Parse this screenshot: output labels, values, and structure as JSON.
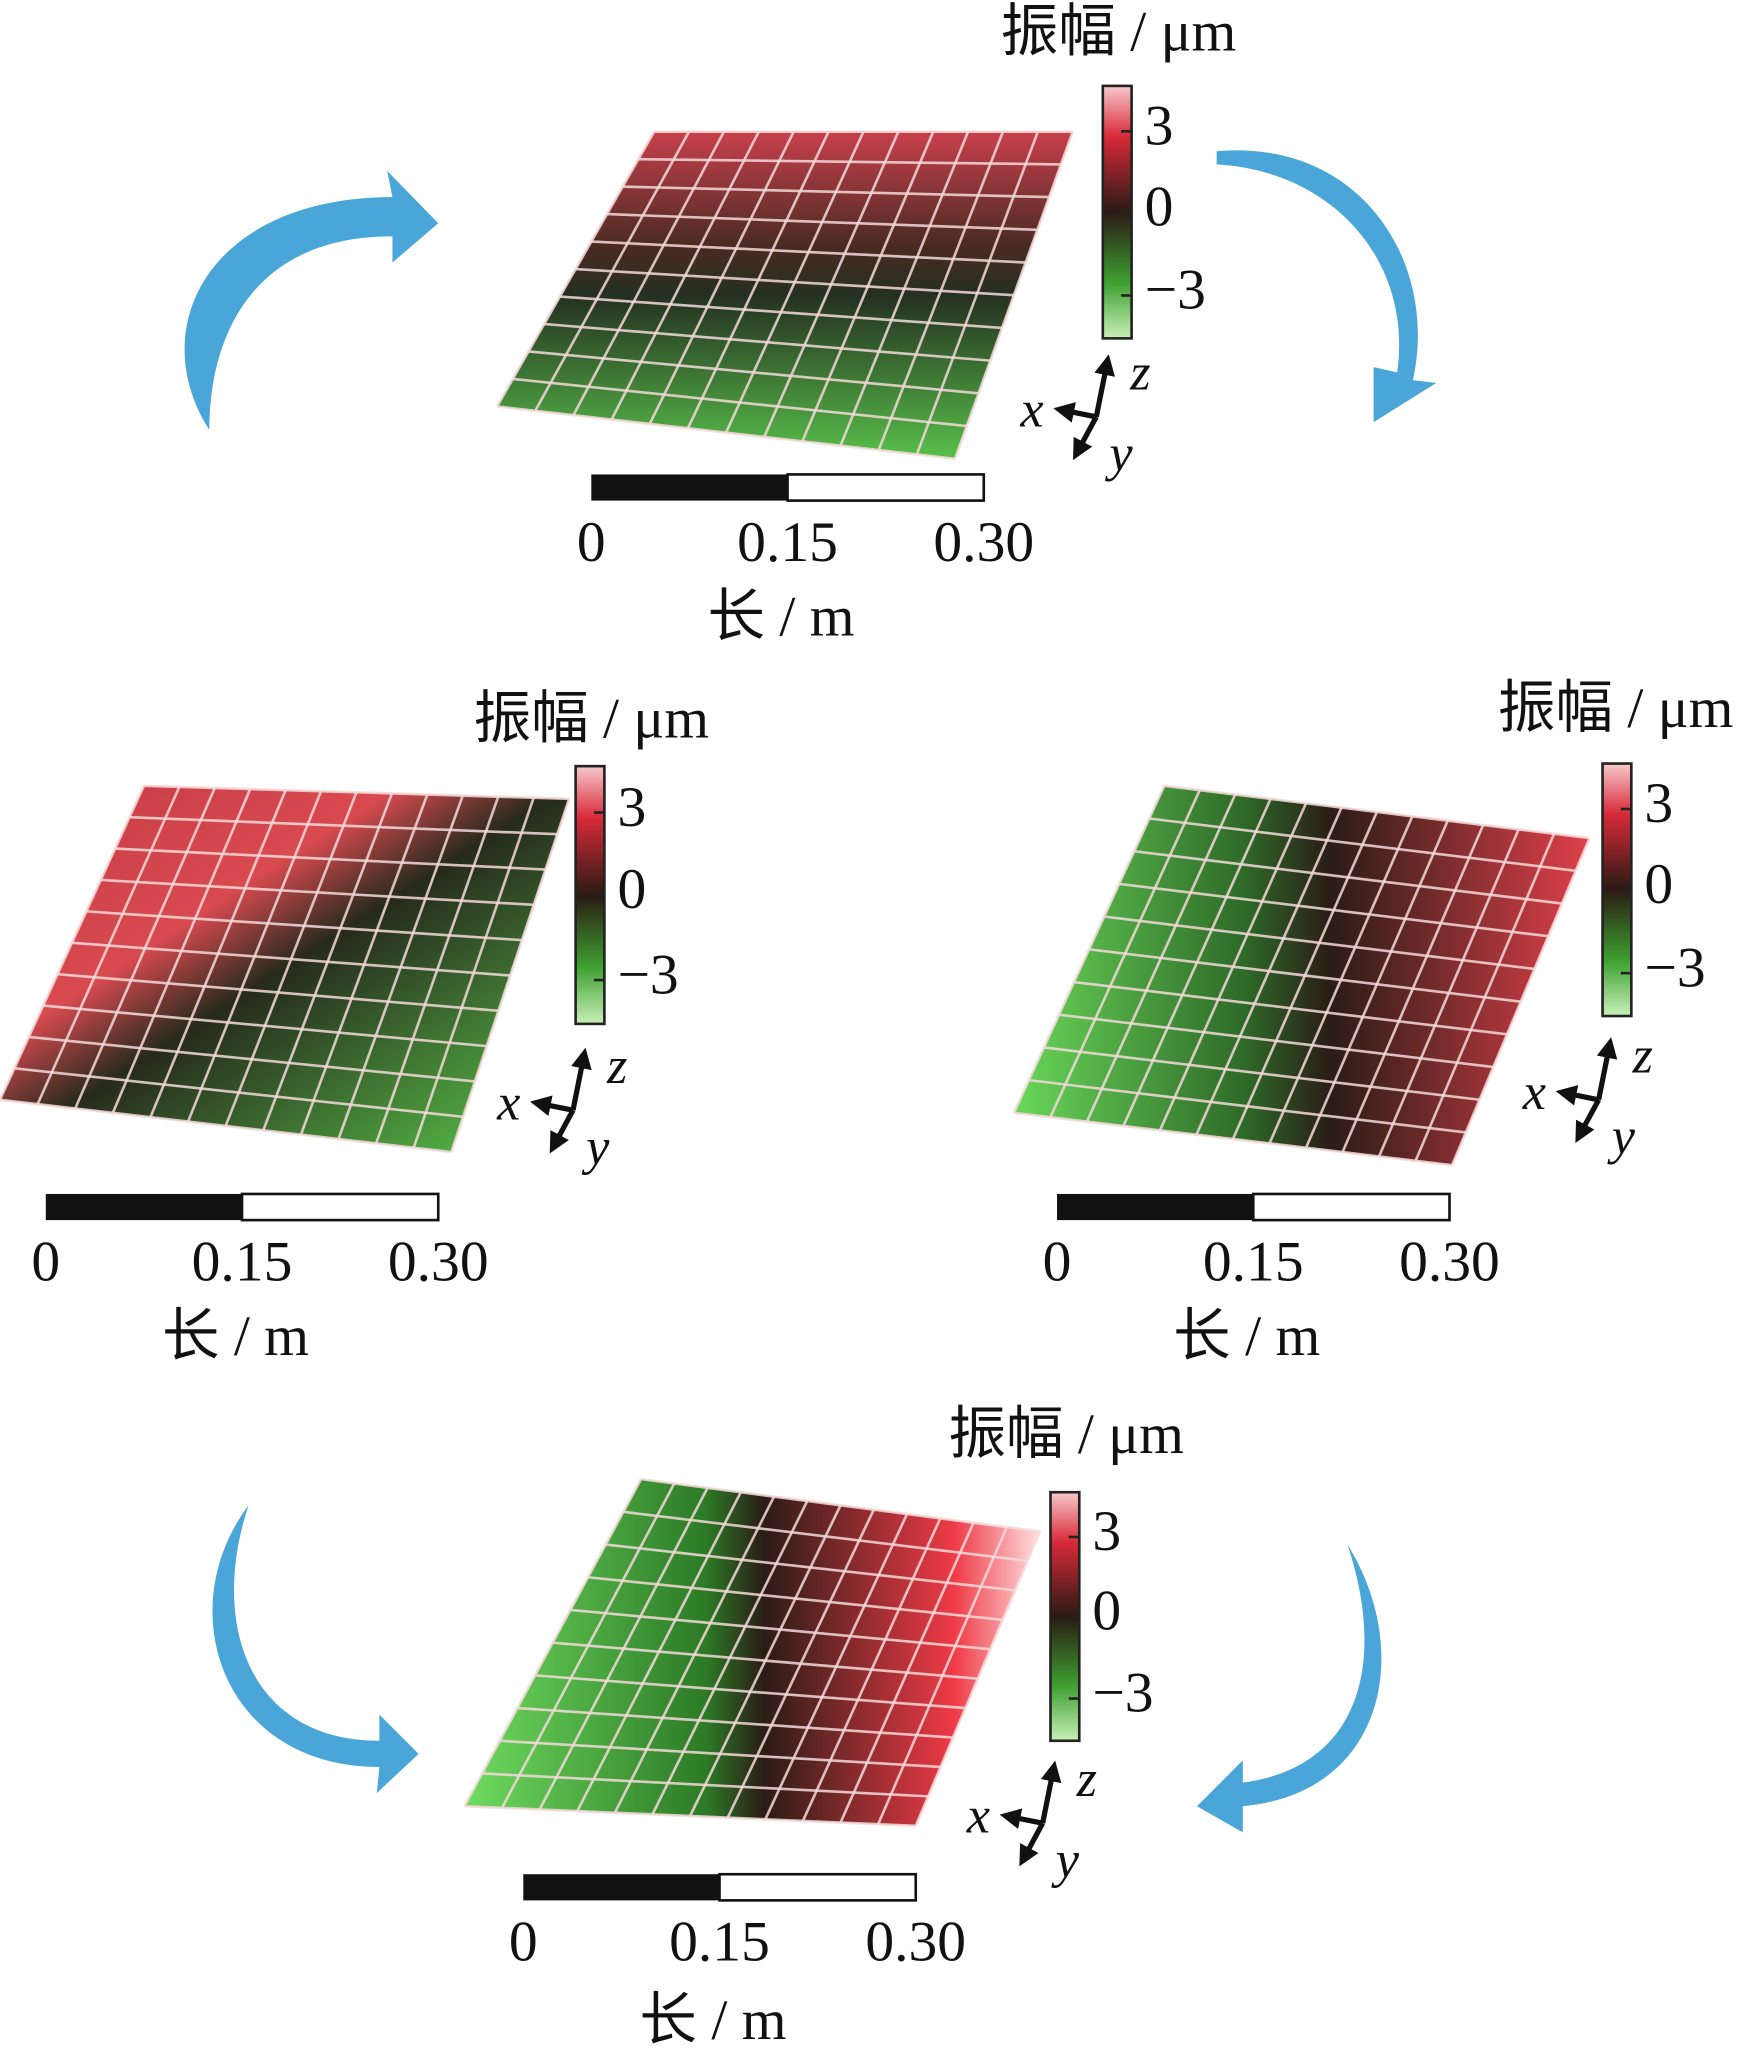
{
  "panels": [
    {
      "colorbar": {
        "title": "振幅 / μm",
        "ticks": [
          "3",
          "0",
          "−3"
        ]
      },
      "scale": {
        "ticks": [
          "0",
          "0.15",
          "0.30"
        ],
        "label": "长 / m"
      },
      "axes": {
        "x": "x",
        "y": "y",
        "z": "z"
      }
    },
    {
      "colorbar": {
        "title": "振幅 / μm",
        "ticks": [
          "3",
          "0",
          "−3"
        ]
      },
      "scale": {
        "ticks": [
          "0",
          "0.15",
          "0.30"
        ],
        "label": "长 / m"
      },
      "axes": {
        "x": "x",
        "y": "y",
        "z": "z"
      }
    },
    {
      "colorbar": {
        "title": "振幅 / μm",
        "ticks": [
          "3",
          "0",
          "−3"
        ]
      },
      "scale": {
        "ticks": [
          "0",
          "0.15",
          "0.30"
        ],
        "label": "长 / m"
      },
      "axes": {
        "x": "x",
        "y": "y",
        "z": "z"
      }
    },
    {
      "colorbar": {
        "title": "振幅 / μm",
        "ticks": [
          "3",
          "0",
          "−3"
        ]
      },
      "scale": {
        "ticks": [
          "0",
          "0.15",
          "0.30"
        ],
        "label": "长 / m"
      },
      "axes": {
        "x": "x",
        "y": "y",
        "z": "z"
      }
    }
  ]
}
